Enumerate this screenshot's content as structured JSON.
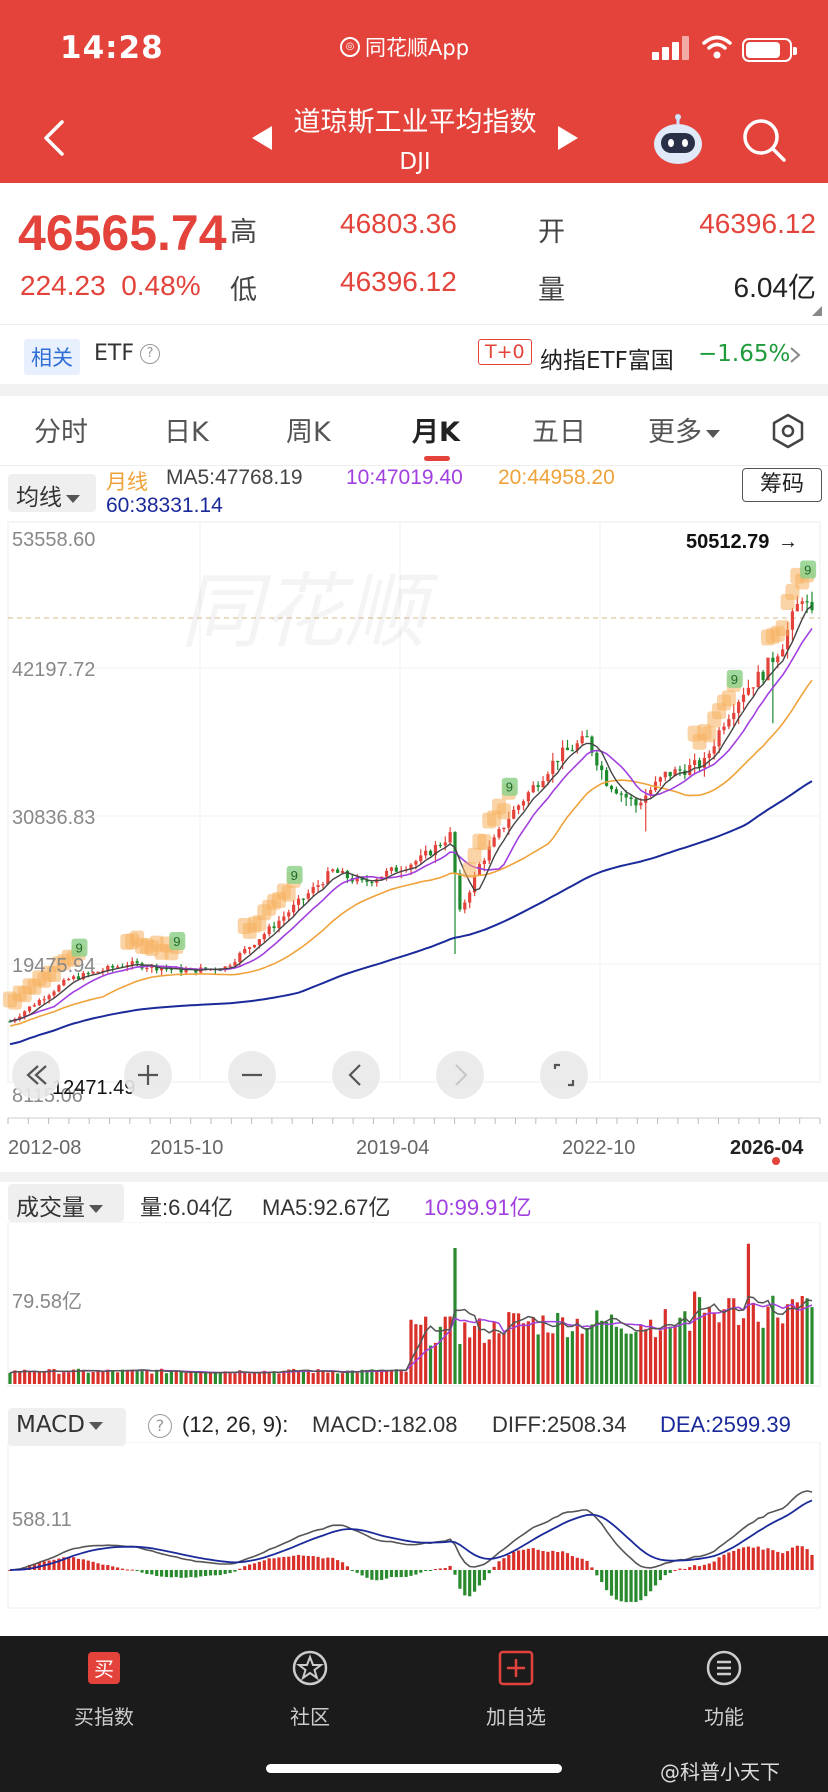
{
  "status_bar": {
    "time": "14:28",
    "app_label": "同花顺App"
  },
  "header": {
    "title": "道琼斯工业平均指数",
    "subtitle": "DJI"
  },
  "quote": {
    "price": "46565.74",
    "change": "224.23",
    "change_pct": "0.48%",
    "high_label": "高",
    "high": "46803.36",
    "open_label": "开",
    "open": "46396.12",
    "low_label": "低",
    "low": "46396.12",
    "volume_label": "量",
    "volume": "6.04亿"
  },
  "etf_row": {
    "related_tag": "相关",
    "etf_label": "ETF",
    "t0_tag": "T+0",
    "etf_name": "纳指ETF富国",
    "etf_change": "−1.65%"
  },
  "tabs": [
    "分时",
    "日K",
    "周K",
    "月K",
    "五日",
    "更多"
  ],
  "active_tab": "月K",
  "ma_bar": {
    "selector": "均线",
    "period_label": "月线",
    "ma5": "MA5:47768.19",
    "ma10": "10:47019.40",
    "ma20": "20:44958.20",
    "ma60": "60:38331.14",
    "chip_button": "筹码"
  },
  "price_chart": {
    "y_labels": [
      "53558.60",
      "42197.72",
      "30836.83",
      "19475.94",
      "8115.06"
    ],
    "max_marker": "50512.79",
    "min_marker": "12471.49",
    "x_labels": [
      "2012-08",
      "2015-10",
      "2019-04",
      "2022-10",
      "2026-04"
    ],
    "colors": {
      "up": "#e3433a",
      "down": "#1e8a2e",
      "ma5": "#444444",
      "ma10": "#a23fe0",
      "ma20": "#f0a23a",
      "ma60": "#1a2a9a"
    }
  },
  "chart_tools": [
    "chevrons-left-icon",
    "zoom-in-icon",
    "zoom-out-icon",
    "chevron-left-icon",
    "chevron-right-icon",
    "fullscreen-icon"
  ],
  "volume_panel": {
    "selector": "成交量",
    "vol": "量:6.04亿",
    "ma5": "MA5:92.67亿",
    "ma10": "10:99.91亿",
    "y_label": "79.58亿"
  },
  "macd_panel": {
    "selector": "MACD",
    "params": "(12, 26, 9):",
    "macd": "MACD:-182.08",
    "diff": "DIFF:2508.34",
    "dea": "DEA:2599.39",
    "y_label": "588.11"
  },
  "bottom_nav": [
    {
      "label": "买指数",
      "icon": "buy-icon"
    },
    {
      "label": "社区",
      "icon": "community-icon"
    },
    {
      "label": "加自选",
      "icon": "add-watchlist-icon"
    },
    {
      "label": "功能",
      "icon": "menu-icon"
    }
  ],
  "watermark": "@科普小天下"
}
